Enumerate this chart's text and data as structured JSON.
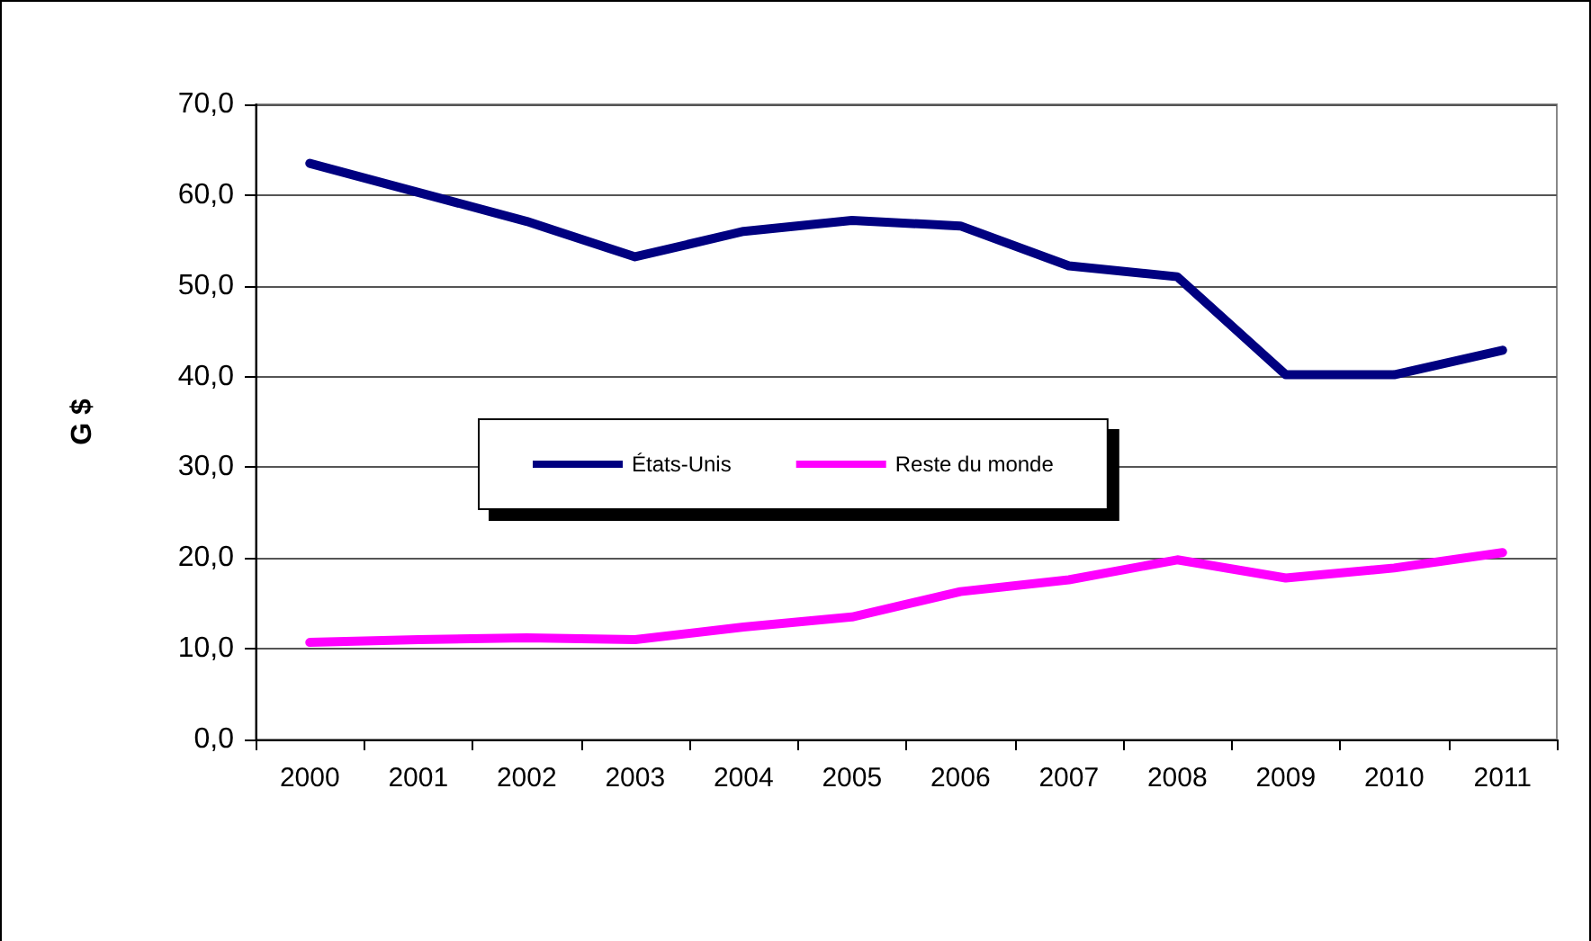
{
  "chart_data": {
    "type": "line",
    "ylabel": "G $",
    "categories": [
      "2000",
      "2001",
      "2002",
      "2003",
      "2004",
      "2005",
      "2006",
      "2007",
      "2008",
      "2009",
      "2010",
      "2011"
    ],
    "series": [
      {
        "name": "États-Unis",
        "color": "#000080",
        "values": [
          63.5,
          60.3,
          57.1,
          53.2,
          56.0,
          57.2,
          56.6,
          52.2,
          51.0,
          40.2,
          40.2,
          42.9
        ]
      },
      {
        "name": "Reste du monde",
        "color": "#ff00ff",
        "values": [
          10.7,
          11.0,
          11.2,
          11.0,
          12.4,
          13.5,
          16.3,
          17.6,
          19.8,
          17.8,
          18.9,
          20.6
        ]
      }
    ],
    "ylim": [
      0,
      70
    ],
    "yticks": [
      {
        "value": 0,
        "label": "0,0"
      },
      {
        "value": 10,
        "label": "10,0"
      },
      {
        "value": 20,
        "label": "20,0"
      },
      {
        "value": 30,
        "label": "30,0"
      },
      {
        "value": 40,
        "label": "40,0"
      },
      {
        "value": 50,
        "label": "50,0"
      },
      {
        "value": 60,
        "label": "60,0"
      },
      {
        "value": 70,
        "label": "70,0"
      }
    ],
    "grid": "y",
    "legend": "center",
    "marker": "none",
    "line_style": "solid"
  }
}
